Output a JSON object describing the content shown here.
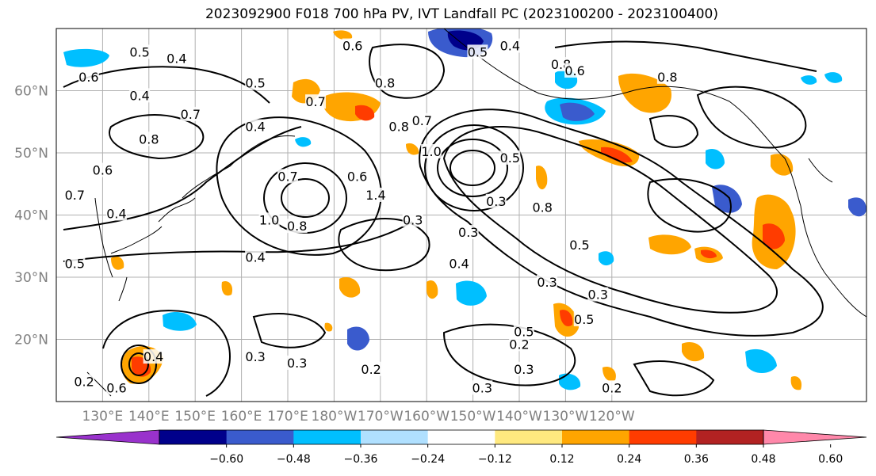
{
  "title": "2023092900 F018 700 hPa PV, IVT Landfall PC (2023100200 - 2023100400)",
  "map": {
    "lon_range": [
      120,
      295
    ],
    "lat_range": [
      10,
      70
    ],
    "lat_ticks": [
      {
        "value": 20,
        "label": "20°N"
      },
      {
        "value": 30,
        "label": "30°N"
      },
      {
        "value": 40,
        "label": "40°N"
      },
      {
        "value": 50,
        "label": "50°N"
      },
      {
        "value": 60,
        "label": "60°N"
      }
    ],
    "lon_ticks": [
      {
        "value": 130,
        "label": "130°E"
      },
      {
        "value": 140,
        "label": "140°E"
      },
      {
        "value": 150,
        "label": "150°E"
      },
      {
        "value": 160,
        "label": "160°E"
      },
      {
        "value": 170,
        "label": "170°E"
      },
      {
        "value": 180,
        "label": "180°W"
      },
      {
        "value": 190,
        "label": "170°W"
      },
      {
        "value": 200,
        "label": "160°W"
      },
      {
        "value": 210,
        "label": "150°W"
      },
      {
        "value": 220,
        "label": "140°W"
      },
      {
        "value": 230,
        "label": "130°W"
      },
      {
        "value": 240,
        "label": "120°W"
      }
    ],
    "grid": true,
    "tick_label_color": "#808080"
  },
  "colorbar": {
    "levels": [
      "−0.60",
      "−0.48",
      "−0.36",
      "−0.24",
      "−0.12",
      "0.12",
      "0.24",
      "0.36",
      "0.48",
      "0.60"
    ],
    "colors": [
      "#9932cc",
      "#00008b",
      "#3a5bcd",
      "#00bfff",
      "#b0e0ff",
      "#ffffff",
      "#ffe97f",
      "#ffa500",
      "#ff3c00",
      "#b22222",
      "#ff88aa"
    ],
    "extend": "both"
  },
  "pv_contour_labels": [
    {
      "text": "0.5",
      "lon": 138,
      "lat": 66
    },
    {
      "text": "0.4",
      "lon": 146,
      "lat": 65
    },
    {
      "text": "0.6",
      "lon": 127,
      "lat": 62
    },
    {
      "text": "0.4",
      "lon": 138,
      "lat": 59
    },
    {
      "text": "0.5",
      "lon": 163,
      "lat": 61
    },
    {
      "text": "0.7",
      "lon": 149,
      "lat": 56
    },
    {
      "text": "0.4",
      "lon": 163,
      "lat": 54
    },
    {
      "text": "0.7",
      "lon": 176,
      "lat": 58
    },
    {
      "text": "0.8",
      "lon": 140,
      "lat": 52
    },
    {
      "text": "0.6",
      "lon": 130,
      "lat": 47
    },
    {
      "text": "0.7",
      "lon": 124,
      "lat": 43
    },
    {
      "text": "0.7",
      "lon": 170,
      "lat": 46
    },
    {
      "text": "1.0",
      "lon": 166,
      "lat": 39
    },
    {
      "text": "0.8",
      "lon": 172,
      "lat": 38
    },
    {
      "text": "0.4",
      "lon": 133,
      "lat": 40
    },
    {
      "text": "0.4",
      "lon": 163,
      "lat": 33
    },
    {
      "text": "0.5",
      "lon": 124,
      "lat": 32
    },
    {
      "text": "0.6",
      "lon": 185,
      "lat": 46
    },
    {
      "text": "0.6",
      "lon": 184,
      "lat": 67
    },
    {
      "text": "0.8",
      "lon": 191,
      "lat": 61
    },
    {
      "text": "0.7",
      "lon": 199,
      "lat": 55
    },
    {
      "text": "0.8",
      "lon": 194,
      "lat": 54
    },
    {
      "text": "1.0",
      "lon": 201,
      "lat": 50
    },
    {
      "text": "1.4",
      "lon": 189,
      "lat": 43
    },
    {
      "text": "0.3",
      "lon": 197,
      "lat": 39
    },
    {
      "text": "0.5",
      "lon": 211,
      "lat": 66
    },
    {
      "text": "0.4",
      "lon": 218,
      "lat": 67
    },
    {
      "text": "0.8",
      "lon": 229,
      "lat": 64
    },
    {
      "text": "0.6",
      "lon": 232,
      "lat": 63
    },
    {
      "text": "0.8",
      "lon": 252,
      "lat": 62
    },
    {
      "text": "0.5",
      "lon": 218,
      "lat": 49
    },
    {
      "text": "0.3",
      "lon": 215,
      "lat": 42
    },
    {
      "text": "0.3",
      "lon": 209,
      "lat": 37
    },
    {
      "text": "0.4",
      "lon": 207,
      "lat": 32
    },
    {
      "text": "0.8",
      "lon": 225,
      "lat": 41
    },
    {
      "text": "0.5",
      "lon": 233,
      "lat": 35
    },
    {
      "text": "0.3",
      "lon": 226,
      "lat": 29
    },
    {
      "text": "0.3",
      "lon": 237,
      "lat": 27
    },
    {
      "text": "0.5",
      "lon": 234,
      "lat": 23
    },
    {
      "text": "0.5",
      "lon": 221,
      "lat": 21
    },
    {
      "text": "0.2",
      "lon": 220,
      "lat": 19
    },
    {
      "text": "0.3",
      "lon": 221,
      "lat": 15
    },
    {
      "text": "0.3",
      "lon": 163,
      "lat": 17
    },
    {
      "text": "0.3",
      "lon": 172,
      "lat": 16
    },
    {
      "text": "0.2",
      "lon": 188,
      "lat": 15
    },
    {
      "text": "0.3",
      "lon": 212,
      "lat": 12
    },
    {
      "text": "0.2",
      "lon": 240,
      "lat": 12
    },
    {
      "text": "0.2",
      "lon": 126,
      "lat": 13
    },
    {
      "text": "0.4",
      "lon": 141,
      "lat": 17
    },
    {
      "text": "0.6",
      "lon": 133,
      "lat": 12
    }
  ]
}
